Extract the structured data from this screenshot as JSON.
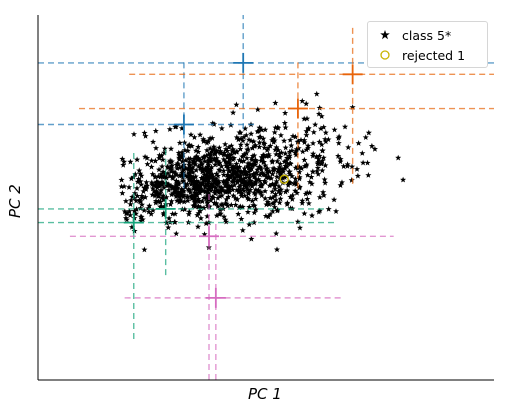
{
  "chart_data": {
    "type": "scatter",
    "xlabel": "PC 1",
    "ylabel": "PC 2",
    "xlim": [
      -4,
      6
    ],
    "ylim": [
      -4,
      4
    ],
    "grid": false,
    "legend_position": "top-right",
    "series": [
      {
        "name": "class 5*",
        "marker": "star",
        "color": "#000000",
        "cloud": {
          "count": 1150,
          "center": [
            0.6,
            0.55
          ],
          "spread": [
            1.1,
            0.55
          ],
          "core": {
            "center": [
              -0.6,
              0.35
            ],
            "spread": [
              0.8,
              0.4
            ],
            "share": 0.45
          },
          "x_range": [
            -2.2,
            5.9
          ],
          "y_range": [
            -1.2,
            2.6
          ]
        }
      },
      {
        "name": "rejected 1",
        "marker": "circle-open",
        "color": "#c8b400",
        "points": [
          [
            1.4,
            0.4
          ]
        ]
      }
    ],
    "crosshairs": [
      {
        "x": 0.5,
        "y": 2.95,
        "color": "#1f77b4",
        "h_extent": [
          -4,
          6
        ],
        "v_extent": [
          1.5,
          4.0
        ]
      },
      {
        "x": -0.8,
        "y": 1.6,
        "color": "#1f77b4",
        "h_extent": [
          -4,
          0.8
        ],
        "v_extent": [
          0.2,
          3.0
        ]
      },
      {
        "x": 2.9,
        "y": 2.7,
        "color": "#e8640a",
        "h_extent": [
          -2.0,
          6
        ],
        "v_extent": [
          0.3,
          3.8
        ]
      },
      {
        "x": 1.7,
        "y": 1.95,
        "color": "#e8640a",
        "h_extent": [
          -3.1,
          6
        ],
        "v_extent": [
          0.2,
          3.0
        ]
      },
      {
        "x": -1.2,
        "y": -0.25,
        "color": "#14a37a",
        "h_extent": [
          -4,
          2.3
        ],
        "v_extent": [
          -1.7,
          1.1
        ]
      },
      {
        "x": -1.9,
        "y": -0.55,
        "color": "#14a37a",
        "h_extent": [
          -4,
          2.5
        ],
        "v_extent": [
          -3.1,
          1.0
        ]
      },
      {
        "x": -0.25,
        "y": -0.85,
        "color": "#d66cc0",
        "h_extent": [
          -3.3,
          3.8
        ],
        "v_extent": [
          -4,
          0.1
        ]
      },
      {
        "x": -0.1,
        "y": -2.2,
        "color": "#d66cc0",
        "h_extent": [
          -2.1,
          2.7
        ],
        "v_extent": [
          -4,
          -0.5
        ]
      }
    ]
  }
}
